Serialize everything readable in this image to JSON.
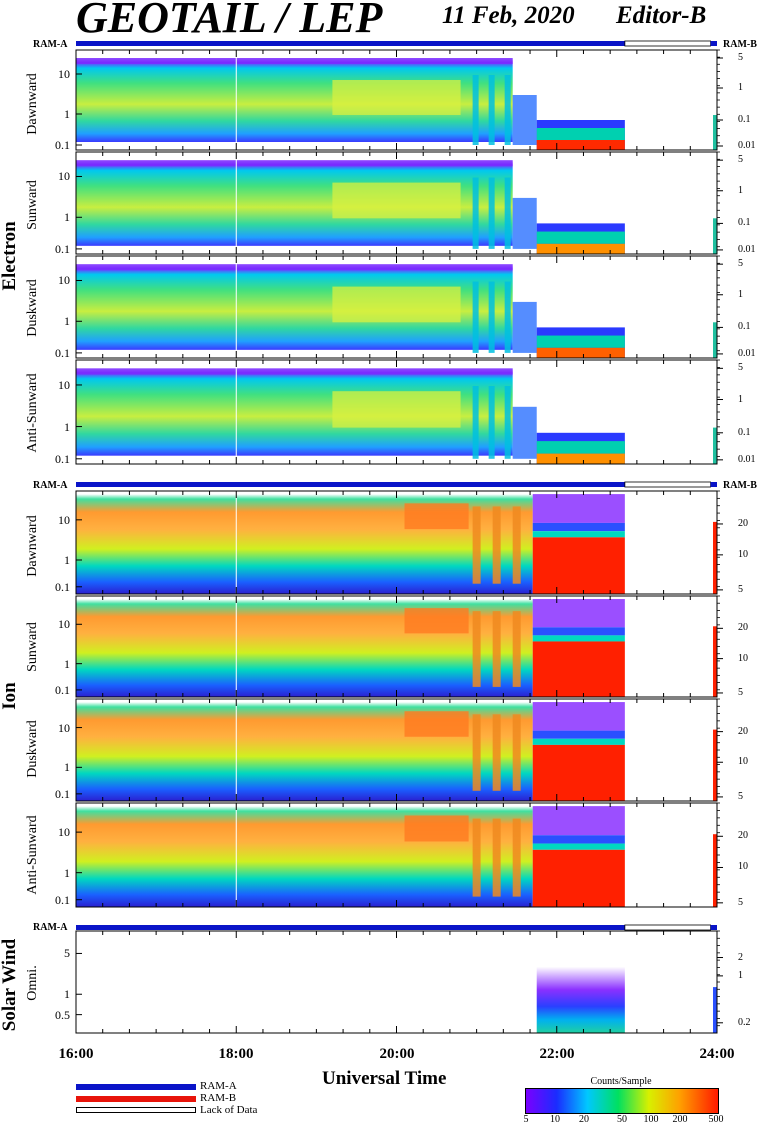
{
  "header": {
    "title": "GEOTAIL / LEP",
    "date": "11 Feb, 2020",
    "editor": "Editor-B"
  },
  "ram_labels": {
    "a": "RAM-A",
    "b": "RAM-B"
  },
  "group_labels": {
    "electron": "Electron",
    "ion": "Ion",
    "solar_wind": "Solar Wind"
  },
  "x_axis": {
    "title": "Universal Time",
    "ticks": [
      "16:00",
      "18:00",
      "20:00",
      "22:00",
      "24:00"
    ]
  },
  "legend": {
    "ram_a": "RAM-A",
    "ram_b": "RAM-B",
    "lack": "Lack of Data"
  },
  "colorbar": {
    "title": "Counts/Sample",
    "ticks": [
      "5",
      "10",
      "20",
      "50",
      "100",
      "200",
      "500"
    ]
  },
  "colors": {
    "ram_a": "#0a14c8",
    "ram_b": "#e8140a"
  },
  "chart_data": [
    {
      "type": "heatmap",
      "group": "Electron",
      "panels": [
        "Dawnward",
        "Sunward",
        "Duskward",
        "Anti-Sunward"
      ],
      "xlabel": "Universal Time",
      "xlim": [
        "16:00",
        "24:00"
      ],
      "y_ticks_left": [
        "10",
        "1",
        "0.1"
      ],
      "y_ticks_right": [
        "5",
        "1",
        "0.1",
        "0.01"
      ],
      "y_scale": "log",
      "ram_mode": [
        [
          "16:00",
          "22:50",
          "RAM-A"
        ],
        [
          "22:50",
          "23:55",
          "Lack of Data"
        ],
        [
          "23:55",
          "24:00",
          "RAM-A"
        ]
      ]
    },
    {
      "type": "heatmap",
      "group": "Ion",
      "panels": [
        "Dawnward",
        "Sunward",
        "Duskward",
        "Anti-Sunward"
      ],
      "xlabel": "Universal Time",
      "xlim": [
        "16:00",
        "24:00"
      ],
      "y_ticks_left": [
        "10",
        "1",
        "0.1"
      ],
      "y_ticks_right": [
        "20",
        "10",
        "5"
      ],
      "y_scale": "log",
      "ram_mode": [
        [
          "16:00",
          "22:50",
          "RAM-A"
        ],
        [
          "22:50",
          "23:55",
          "Lack of Data"
        ],
        [
          "23:55",
          "24:00",
          "RAM-A"
        ]
      ]
    },
    {
      "type": "heatmap",
      "group": "Solar Wind",
      "panels": [
        "Omni."
      ],
      "xlabel": "Universal Time",
      "xlim": [
        "16:00",
        "24:00"
      ],
      "y_ticks_left": [
        "5",
        "1",
        "0.5"
      ],
      "y_ticks_right": [
        "2",
        "1",
        "0.2"
      ],
      "y_scale": "log",
      "ram_mode": [
        [
          "16:00",
          "22:50",
          "RAM-A"
        ],
        [
          "22:50",
          "23:55",
          "Lack of Data"
        ],
        [
          "23:55",
          "24:00",
          "RAM-A"
        ]
      ]
    }
  ]
}
